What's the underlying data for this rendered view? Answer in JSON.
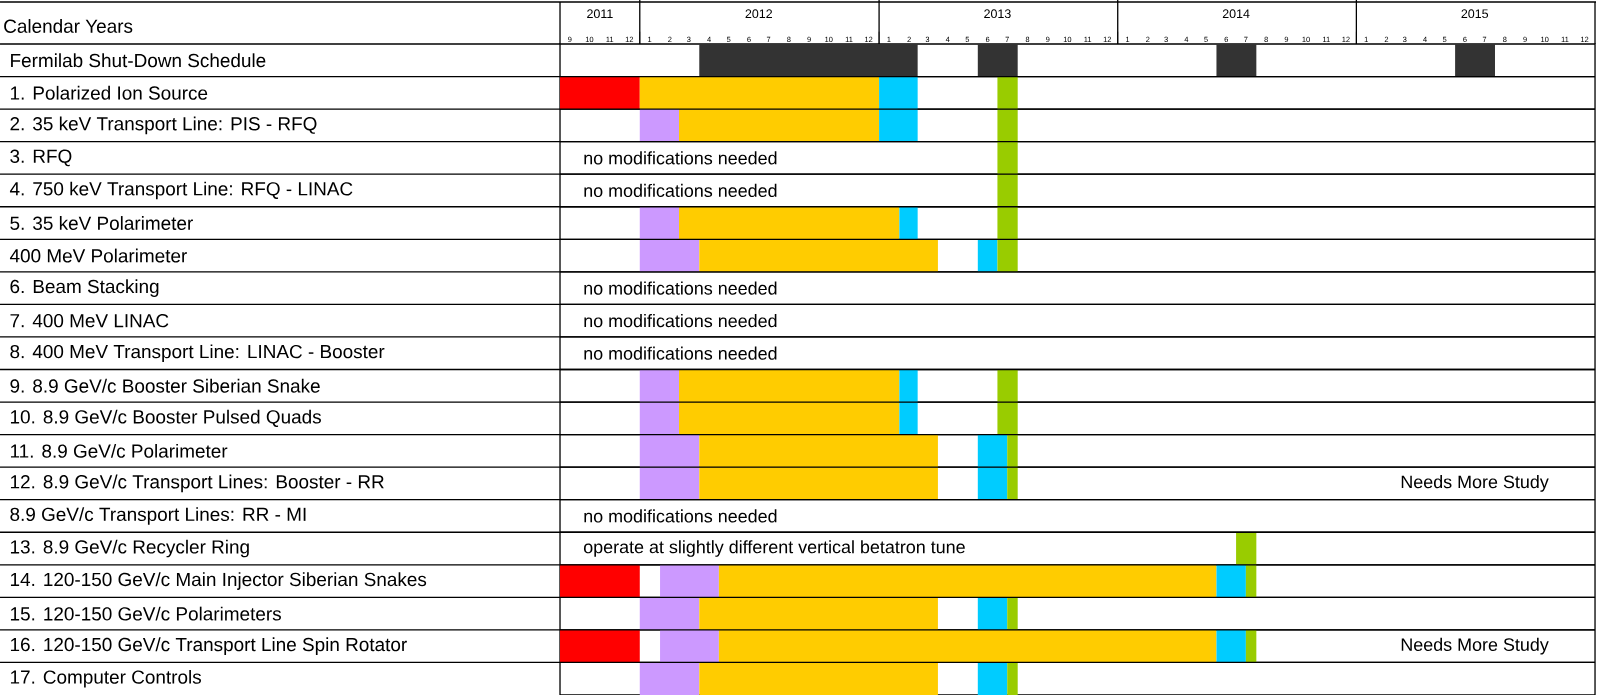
{
  "chart_data": {
    "type": "bar",
    "orientation": "horizontal",
    "xlabel": "Calendar Years",
    "categories": [
      "Fermilab Shut-Down Schedule",
      "1. Polarized Ion Source",
      "2. 35 keV Transport Line: PIS - RFQ",
      "3. RFQ",
      "4. 750 keV Transport Line: RFQ - LINAC",
      "5. 35 keV Polarimeter",
      "400 MeV Polarimeter",
      "6. Beam Stacking",
      "7. 400 MeV  LINAC",
      "8. 400 MeV Transport Line: LINAC - Booster",
      "9. 8.9 GeV/c Booster Siberian Snake",
      "10. 8.9 GeV/c Booster Pulsed Quads",
      "11. 8.9 GeV/c Polarimeter",
      "12. 8.9 GeV/c Transport Lines: Booster - RR",
      "8.9 GeV/c Transport Lines: RR - MI",
      "13. 8.9 GeV/c Recycler Ring",
      "14. 120-150 GeV/c Main Injector Siberian Snakes",
      "15. 120-150 GeV/c Polarimeters",
      "16. 120-150 GeV/c Transport Line Spin Rotator",
      "17. Computer Controls"
    ],
    "series": [
      {
        "color": "#333333",
        "base": [
          15431,
          null,
          null,
          null,
          null,
          null,
          null,
          null,
          null,
          null,
          null,
          null,
          null,
          null,
          null,
          null,
          null,
          null,
          null,
          null
        ],
        "values": [
          334,
          null,
          null,
          null,
          null,
          null,
          null,
          null,
          null,
          null,
          null,
          null,
          null,
          null,
          null,
          null,
          null,
          null,
          null,
          null
        ]
      },
      {
        "color": "#333333",
        "base": [
          15857,
          null,
          null,
          null,
          null,
          null,
          null,
          null,
          null,
          null,
          null,
          null,
          null,
          null,
          null,
          null,
          null,
          null,
          null,
          null
        ],
        "values": [
          61,
          null,
          null,
          null,
          null,
          null,
          null,
          null,
          null,
          null,
          null,
          null,
          null,
          null,
          null,
          null,
          null,
          null,
          null,
          null
        ]
      },
      {
        "color": "#333333",
        "base": [
          16222,
          null,
          null,
          null,
          null,
          null,
          null,
          null,
          null,
          null,
          null,
          null,
          null,
          null,
          null,
          null,
          null,
          null,
          null,
          null
        ],
        "values": [
          61,
          null,
          null,
          null,
          null,
          null,
          null,
          null,
          null,
          null,
          null,
          null,
          null,
          null,
          null,
          null,
          null,
          null,
          null,
          null
        ]
      },
      {
        "color": "#333333",
        "base": [
          16587,
          null,
          null,
          null,
          null,
          null,
          null,
          null,
          null,
          null,
          null,
          null,
          null,
          null,
          null,
          null,
          null,
          null,
          null,
          null
        ],
        "values": [
          61,
          null,
          null,
          null,
          null,
          null,
          null,
          null,
          null,
          null,
          null,
          null,
          null,
          null,
          null,
          null,
          null,
          null,
          null,
          null
        ]
      },
      {
        "color": "#ff0000",
        "base": [
          null,
          15218,
          null,
          null,
          null,
          null,
          null,
          null,
          null,
          null,
          null,
          null,
          null,
          null,
          null,
          null,
          15218,
          null,
          15218,
          null
        ],
        "values": [
          null,
          122,
          null,
          null,
          null,
          null,
          null,
          null,
          null,
          null,
          null,
          null,
          null,
          null,
          null,
          null,
          122,
          null,
          122,
          null
        ]
      },
      {
        "color": "#cc99ff",
        "base": [
          null,
          null,
          15340,
          null,
          null,
          15340,
          15340,
          null,
          null,
          null,
          15340,
          15340,
          15340,
          15340,
          null,
          null,
          15371,
          15340,
          15371,
          15340
        ],
        "values": [
          null,
          null,
          60,
          null,
          null,
          60,
          91,
          null,
          null,
          null,
          60,
          60,
          91,
          91,
          null,
          null,
          90,
          91,
          90,
          91
        ]
      },
      {
        "color": "#ffcc00",
        "base": [
          null,
          15340,
          15400,
          null,
          null,
          15400,
          15431,
          null,
          null,
          null,
          15400,
          15400,
          15431,
          15431,
          null,
          null,
          15461,
          15431,
          15461,
          15431
        ],
        "values": [
          null,
          366,
          306,
          null,
          null,
          337,
          365,
          null,
          null,
          null,
          337,
          337,
          365,
          365,
          null,
          null,
          761,
          365,
          761,
          365
        ]
      },
      {
        "color": "#00ccff",
        "base": [
          null,
          15706,
          15706,
          null,
          null,
          15737,
          15857,
          null,
          null,
          null,
          15737,
          15737,
          15857,
          15857,
          null,
          null,
          16222,
          15857,
          16222,
          15857
        ],
        "values": [
          null,
          59,
          59,
          null,
          null,
          28,
          30,
          null,
          null,
          null,
          28,
          28,
          45,
          45,
          null,
          null,
          45,
          45,
          45,
          45
        ]
      },
      {
        "color": "#99cc00",
        "base": [
          null,
          15887,
          15887,
          15887,
          15887,
          15887,
          15887,
          null,
          null,
          null,
          15887,
          15887,
          15902,
          15902,
          null,
          16252,
          16267,
          15902,
          16267,
          15902
        ],
        "values": [
          null,
          31,
          31,
          31,
          31,
          31,
          31,
          null,
          null,
          null,
          31,
          31,
          16,
          16,
          null,
          31,
          16,
          16,
          16,
          16
        ]
      }
    ],
    "xlim": [
      "2011-09-01",
      "2016-01-01"
    ],
    "xticks": [
      {
        "value": "2011-09-16",
        "label": "9"
      },
      {
        "value": "2011-10-16",
        "label": "10"
      },
      {
        "value": "2011-11-16",
        "label": "11"
      },
      {
        "value": "2011-12-16",
        "label": "12"
      },
      {
        "value": "2012-01-16",
        "label": "1"
      },
      {
        "value": "2012-02-16",
        "label": "2"
      },
      {
        "value": "2012-03-16",
        "label": "3"
      },
      {
        "value": "2012-04-16",
        "label": "4"
      },
      {
        "value": "2012-05-16",
        "label": "5"
      },
      {
        "value": "2012-06-16",
        "label": "6"
      },
      {
        "value": "2012-07-16",
        "label": "7"
      },
      {
        "value": "2012-08-16",
        "label": "8"
      },
      {
        "value": "2012-09-16",
        "label": "9"
      },
      {
        "value": "2012-10-16",
        "label": "10"
      },
      {
        "value": "2012-11-16",
        "label": "11"
      },
      {
        "value": "2012-12-16",
        "label": "12"
      },
      {
        "value": "2013-01-16",
        "label": "1"
      },
      {
        "value": "2013-02-16",
        "label": "2"
      },
      {
        "value": "2013-03-16",
        "label": "3"
      },
      {
        "value": "2013-04-16",
        "label": "4"
      },
      {
        "value": "2013-05-16",
        "label": "5"
      },
      {
        "value": "2013-06-16",
        "label": "6"
      },
      {
        "value": "2013-07-16",
        "label": "7"
      },
      {
        "value": "2013-08-16",
        "label": "8"
      },
      {
        "value": "2013-09-16",
        "label": "9"
      },
      {
        "value": "2013-10-16",
        "label": "10"
      },
      {
        "value": "2013-11-16",
        "label": "11"
      },
      {
        "value": "2013-12-16",
        "label": "12"
      },
      {
        "value": "2014-01-16",
        "label": "1"
      },
      {
        "value": "2014-02-16",
        "label": "2"
      },
      {
        "value": "2014-03-16",
        "label": "3"
      },
      {
        "value": "2014-04-16",
        "label": "4"
      },
      {
        "value": "2014-05-16",
        "label": "5"
      },
      {
        "value": "2014-06-16",
        "label": "6"
      },
      {
        "value": "2014-07-16",
        "label": "7"
      },
      {
        "value": "2014-08-16",
        "label": "8"
      },
      {
        "value": "2014-09-16",
        "label": "9"
      },
      {
        "value": "2014-10-16",
        "label": "10"
      },
      {
        "value": "2014-11-16",
        "label": "11"
      },
      {
        "value": "2014-12-16",
        "label": "12"
      },
      {
        "value": "2015-01-16",
        "label": "1"
      },
      {
        "value": "2015-02-16",
        "label": "2"
      },
      {
        "value": "2015-03-16",
        "label": "3"
      },
      {
        "value": "2015-04-16",
        "label": "4"
      },
      {
        "value": "2015-05-16",
        "label": "5"
      },
      {
        "value": "2015-06-16",
        "label": "6"
      },
      {
        "value": "2015-07-16",
        "label": "7"
      },
      {
        "value": "2015-08-16",
        "label": "8"
      },
      {
        "value": "2015-09-16",
        "label": "9"
      },
      {
        "value": "2015-10-16",
        "label": "10"
      },
      {
        "value": "2015-11-16",
        "label": "11"
      },
      {
        "value": "2015-12-16",
        "label": "12"
      }
    ],
    "x2lim": [
      "2011-09-01",
      "2016-01-01"
    ],
    "x2ticks": [
      {
        "value": "2011-11-01",
        "label": "2011"
      },
      {
        "value": "2012-01-01",
        "label": null
      },
      {
        "value": "2012-07-01",
        "label": "2012"
      },
      {
        "value": "2013-01-01",
        "label": null
      },
      {
        "value": "2013-07-01",
        "label": "2013"
      },
      {
        "value": "2014-01-01",
        "label": null
      },
      {
        "value": "2014-07-01",
        "label": "2014"
      },
      {
        "value": "2015-01-01",
        "label": null
      },
      {
        "value": "2015-07-01",
        "label": "2015"
      }
    ],
    "grid": "y",
    "annotations": [
      "no modifications needed",
      "no modifications needed",
      "no modifications needed",
      "no modifications needed",
      "no modifications needed",
      "Needs More Study",
      "no modifications needed",
      "operate at slightly different vertical betatron tune",
      "Needs More Study"
    ]
  }
}
